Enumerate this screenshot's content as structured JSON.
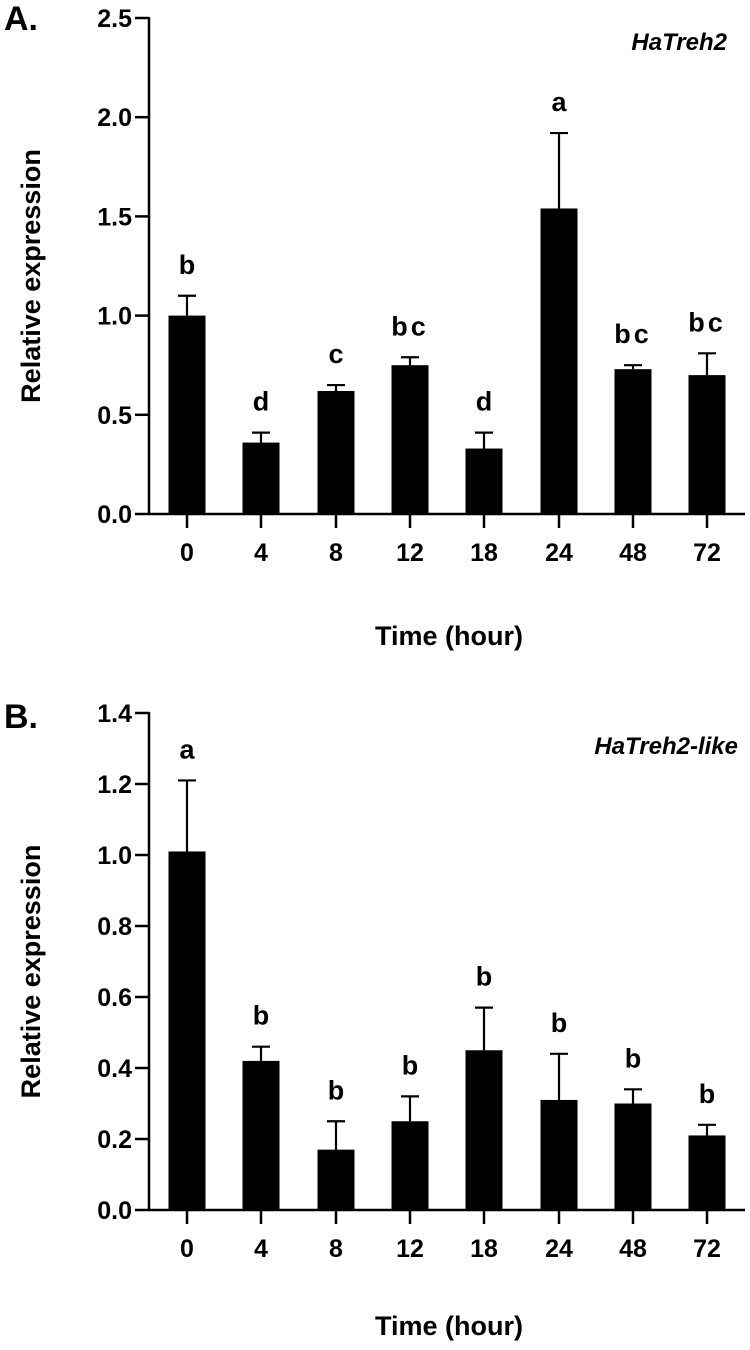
{
  "chart_data": [
    {
      "type": "bar",
      "panel_label": "A.",
      "title": "HaTreh2",
      "xlabel": "Time (hour)",
      "ylabel": "Relative expression",
      "ylim": [
        0,
        2.5
      ],
      "yticks": [
        "0.0",
        "0.5",
        "1.0",
        "1.5",
        "2.0",
        "2.5"
      ],
      "ytick_values": [
        0,
        0.5,
        1.0,
        1.5,
        2.0,
        2.5
      ],
      "categories": [
        "0",
        "4",
        "8",
        "12",
        "18",
        "24",
        "48",
        "72"
      ],
      "values": [
        1.0,
        0.36,
        0.62,
        0.75,
        0.33,
        1.54,
        0.73,
        0.7
      ],
      "error_upper": [
        1.1,
        0.41,
        0.65,
        0.79,
        0.41,
        1.92,
        0.75,
        0.81
      ],
      "significance": [
        "b",
        "d",
        "c",
        "bc",
        "d",
        "a",
        "bc",
        "bc"
      ],
      "bar_color": "#000000",
      "grid": false,
      "legend": null
    },
    {
      "type": "bar",
      "panel_label": "B.",
      "title": "HaTreh2-like",
      "xlabel": "Time (hour)",
      "ylabel": "Relative expression",
      "ylim": [
        0,
        1.4
      ],
      "yticks": [
        "0.0",
        "0.2",
        "0.4",
        "0.6",
        "0.8",
        "1.0",
        "1.2",
        "1.4"
      ],
      "ytick_values": [
        0,
        0.2,
        0.4,
        0.6,
        0.8,
        1.0,
        1.2,
        1.4
      ],
      "categories": [
        "0",
        "4",
        "8",
        "12",
        "18",
        "24",
        "48",
        "72"
      ],
      "values": [
        1.01,
        0.42,
        0.17,
        0.25,
        0.45,
        0.31,
        0.3,
        0.21
      ],
      "error_upper": [
        1.21,
        0.46,
        0.25,
        0.32,
        0.57,
        0.44,
        0.34,
        0.24
      ],
      "significance": [
        "a",
        "b",
        "b",
        "b",
        "b",
        "b",
        "b",
        "b"
      ],
      "bar_color": "#000000",
      "grid": false,
      "legend": null
    }
  ]
}
